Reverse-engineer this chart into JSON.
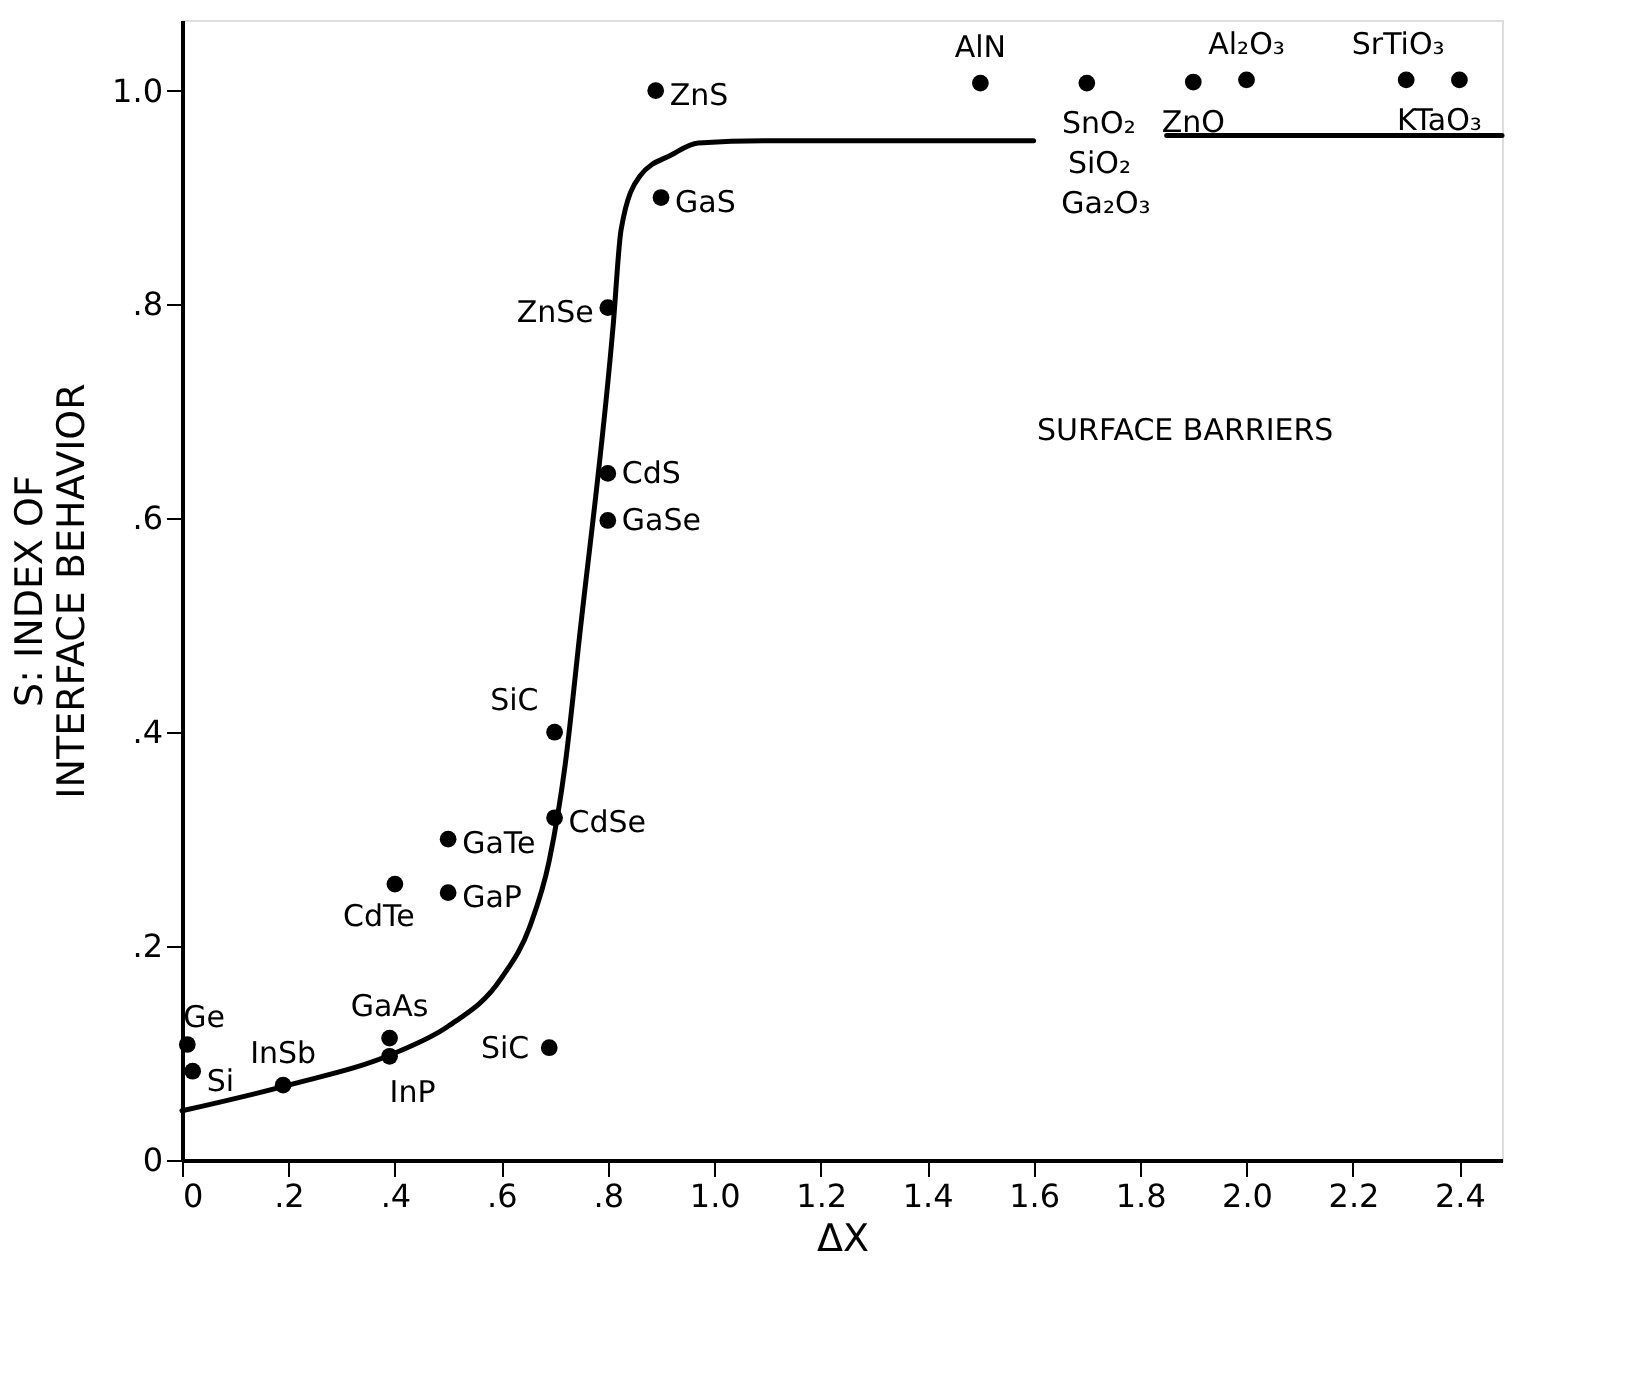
{
  "chart_data": {
    "type": "scatter",
    "xlabel": "ΔX",
    "ylabel": "S: INDEX OF\nINTERFACE BEHAVIOR",
    "xlim": [
      0,
      2.48
    ],
    "ylim": [
      0,
      1.066
    ],
    "xticks": [
      {
        "value": 0,
        "label": "0"
      },
      {
        "value": 0.2,
        "label": ".2"
      },
      {
        "value": 0.4,
        "label": ".4"
      },
      {
        "value": 0.6,
        "label": ".6"
      },
      {
        "value": 0.8,
        "label": ".8"
      },
      {
        "value": 1.0,
        "label": "1.0"
      },
      {
        "value": 1.2,
        "label": "1.2"
      },
      {
        "value": 1.4,
        "label": "1.4"
      },
      {
        "value": 1.6,
        "label": "1.6"
      },
      {
        "value": 1.8,
        "label": "1.8"
      },
      {
        "value": 2.0,
        "label": "2.0"
      },
      {
        "value": 2.2,
        "label": "2.2"
      },
      {
        "value": 2.4,
        "label": "2.4"
      }
    ],
    "yticks": [
      {
        "value": 0,
        "label": "0"
      },
      {
        "value": 0.2,
        "label": ".2"
      },
      {
        "value": 0.4,
        "label": ".4"
      },
      {
        "value": 0.6,
        "label": ".6"
      },
      {
        "value": 0.8,
        "label": ".8"
      },
      {
        "value": 1.0,
        "label": "1.0"
      }
    ],
    "grid": false,
    "marker": "circle",
    "series": [
      {
        "color": "#000000",
        "x": [
          0.01,
          0.02,
          0.19,
          0.39,
          0.39,
          0.4,
          0.5,
          0.5,
          0.69,
          0.7,
          0.7,
          0.89,
          0.9,
          0.8,
          0.8,
          0.8,
          1.5,
          1.7,
          1.9,
          2.0,
          2.3,
          2.4
        ],
        "values": [
          0.108,
          0.083,
          0.07,
          0.114,
          0.097,
          0.258,
          0.3,
          0.25,
          0.105,
          0.4,
          0.32,
          1.0,
          0.9,
          0.797,
          0.642,
          0.598,
          1.007,
          1.007,
          1.008,
          1.01,
          1.01,
          1.01
        ]
      },
      {
        "type": "line",
        "color": "#000000",
        "line_style": "solid",
        "marker": "none",
        "x": [
          0,
          0.2,
          0.4,
          0.5,
          0.6,
          0.654,
          0.69,
          0.72,
          0.747,
          0.81,
          0.825,
          0.86,
          0.92,
          0.97,
          1.1,
          1.6
        ],
        "values": [
          0.046,
          0.07,
          0.1,
          0.125,
          0.17,
          0.219,
          0.28,
          0.37,
          0.49,
          0.78,
          0.87,
          0.92,
          0.94,
          0.951,
          0.953,
          0.953
        ]
      },
      {
        "type": "line",
        "color": "#000000",
        "line_style": "solid",
        "marker": "none",
        "x": [
          1.85,
          2.48
        ],
        "values": [
          0.958,
          0.958
        ]
      }
    ],
    "annotations": [
      {
        "text": "Ge",
        "x": 0.01,
        "y": 0.108
      },
      {
        "text": "Si",
        "x": 0.02,
        "y": 0.083
      },
      {
        "text": "InSb",
        "x": 0.19,
        "y": 0.07
      },
      {
        "text": "GaAs",
        "x": 0.39,
        "y": 0.114
      },
      {
        "text": "InP",
        "x": 0.39,
        "y": 0.097
      },
      {
        "text": "CdTe",
        "x": 0.4,
        "y": 0.258
      },
      {
        "text": "GaTe",
        "x": 0.5,
        "y": 0.3
      },
      {
        "text": "GaP",
        "x": 0.5,
        "y": 0.25
      },
      {
        "text": "SiC",
        "x": 0.69,
        "y": 0.105
      },
      {
        "text": "SiC",
        "x": 0.7,
        "y": 0.4
      },
      {
        "text": "CdSe",
        "x": 0.7,
        "y": 0.32
      },
      {
        "text": "ZnS",
        "x": 0.89,
        "y": 1.0
      },
      {
        "text": "GaS",
        "x": 0.9,
        "y": 0.9
      },
      {
        "text": "ZnSe",
        "x": 0.8,
        "y": 0.797
      },
      {
        "text": "CdS",
        "x": 0.8,
        "y": 0.642
      },
      {
        "text": "GaSe",
        "x": 0.8,
        "y": 0.598
      },
      {
        "text": "AlN",
        "x": 1.5,
        "y": 1.007
      },
      {
        "text": "SnO₂",
        "x": 1.7,
        "y": 1.007
      },
      {
        "text": "ZnO",
        "x": 1.9,
        "y": 1.008
      },
      {
        "text": "Al₂O₃",
        "x": 2.0,
        "y": 1.01
      },
      {
        "text": "SrTiO₃",
        "x": 2.3,
        "y": 1.01
      },
      {
        "text": "KTaO₃",
        "x": 2.4,
        "y": 1.01
      },
      "SiO₂",
      "Ga₂O₃",
      "SURFACE BARRIERS"
    ]
  }
}
